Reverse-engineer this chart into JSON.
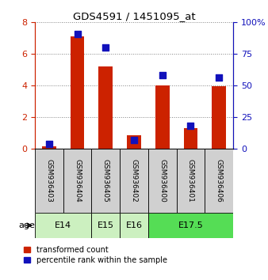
{
  "title": "GDS4591 / 1451095_at",
  "samples": [
    "GSM936403",
    "GSM936404",
    "GSM936405",
    "GSM936402",
    "GSM936400",
    "GSM936401",
    "GSM936406"
  ],
  "transformed_count": [
    0.15,
    7.1,
    5.2,
    0.85,
    4.0,
    1.3,
    3.95
  ],
  "percentile_rank": [
    3.5,
    91.0,
    80.0,
    6.5,
    58.0,
    18.0,
    56.0
  ],
  "age_groups": [
    {
      "label": "E14",
      "cols": [
        0,
        1
      ],
      "color": "#ccf0c0"
    },
    {
      "label": "E15",
      "cols": [
        2
      ],
      "color": "#ccf0c0"
    },
    {
      "label": "E16",
      "cols": [
        3
      ],
      "color": "#ccf0c0"
    },
    {
      "label": "E17.5",
      "cols": [
        4,
        5,
        6
      ],
      "color": "#55dd55"
    }
  ],
  "bar_color": "#cc2200",
  "dot_color": "#1111bb",
  "left_axis_color": "#cc2200",
  "right_axis_color": "#1111bb",
  "ylim_left": [
    0,
    8
  ],
  "ylim_right": [
    0,
    100
  ],
  "yticks_left": [
    0,
    2,
    4,
    6,
    8
  ],
  "yticks_right": [
    0,
    25,
    50,
    75,
    100
  ],
  "ytick_labels_right": [
    "0",
    "25",
    "50",
    "75",
    "100%"
  ],
  "legend_red": "transformed count",
  "legend_blue": "percentile rank within the sample",
  "bar_width": 0.5,
  "dot_size": 40,
  "age_label": "age"
}
